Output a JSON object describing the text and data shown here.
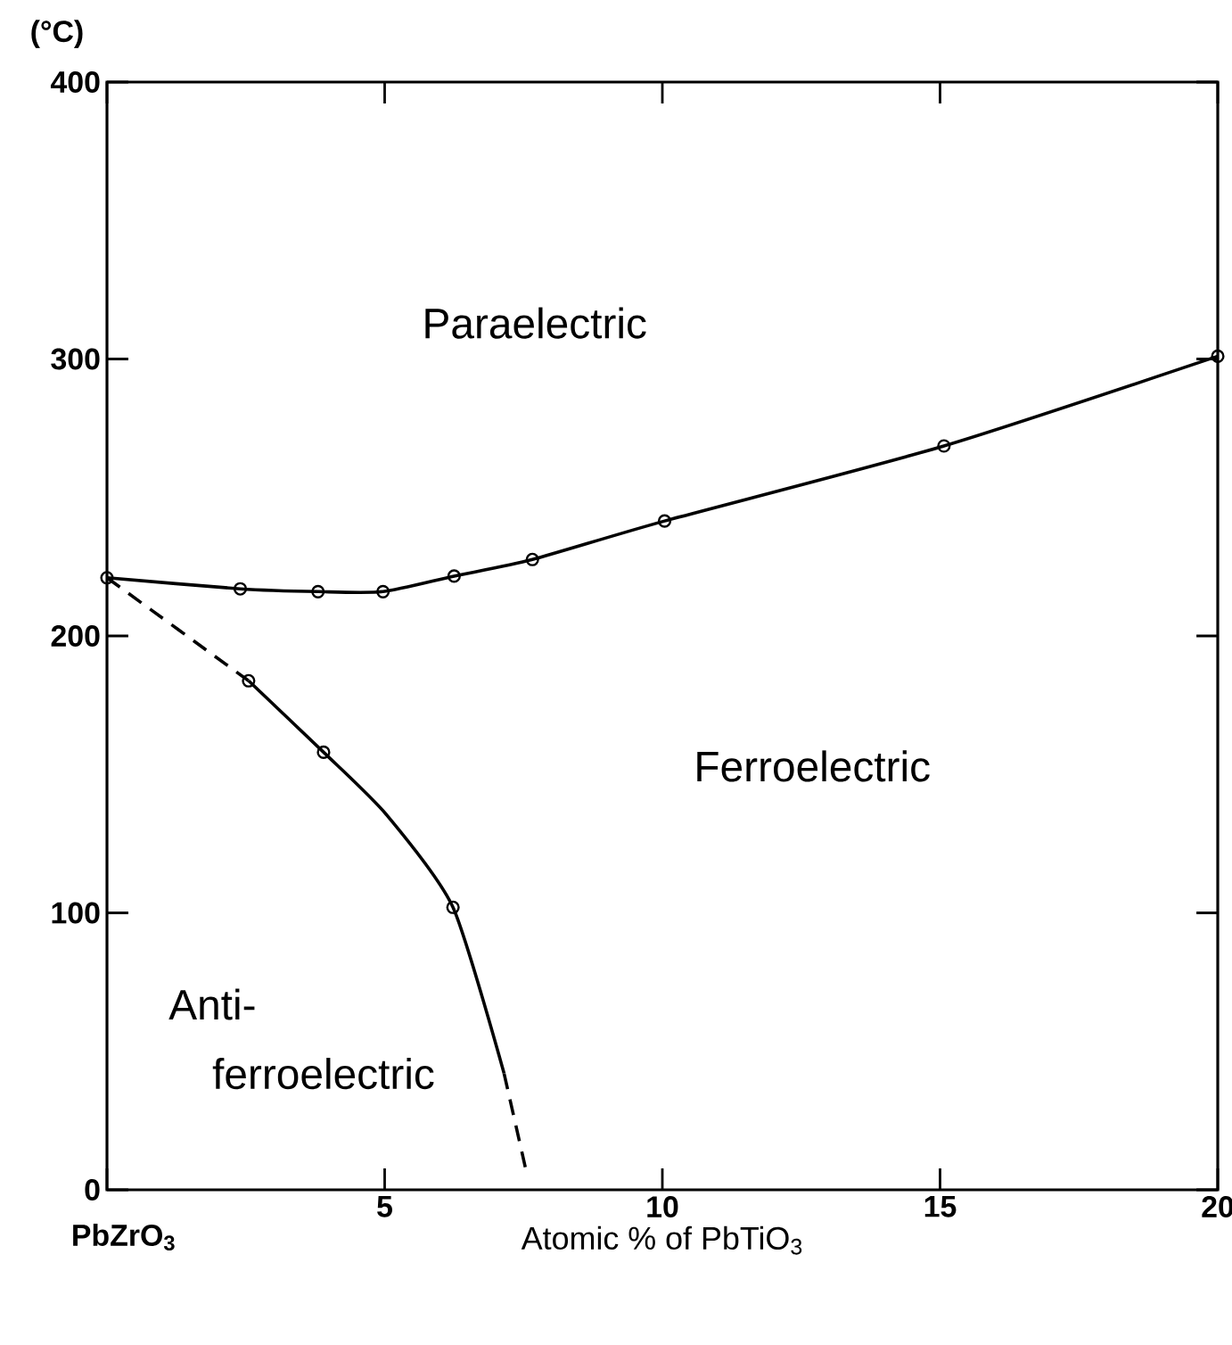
{
  "chart_data": {
    "type": "line",
    "xlabel": "Atomic % of PbTiO$_{3}$",
    "ylabel": "(°C)",
    "xlim": [
      0,
      20
    ],
    "ylim": [
      0,
      400
    ],
    "xticks": [
      {
        "value": 0,
        "label": null
      },
      5,
      10,
      15,
      20
    ],
    "yticks": [
      0,
      100,
      200,
      300,
      400
    ],
    "series": [
      {
        "color": "#000000",
        "marker": "circle",
        "line_style": "solid",
        "x": [
          0,
          2.4,
          3.8,
          4.97,
          6.25,
          7.66,
          10.04,
          15.07,
          20
        ],
        "values": [
          221,
          217,
          216,
          216,
          221.6,
          227.6,
          241.5,
          268.6,
          301
        ]
      },
      {
        "color": "#000000",
        "marker": "none",
        "line_style": "dashed",
        "x": [
          0,
          2.55
        ],
        "values": [
          221,
          183.8
        ]
      },
      {
        "color": "#000000",
        "marker": "none",
        "line_style": "solid",
        "x": [
          2.55,
          3.9,
          5.03,
          6.23,
          7.15
        ],
        "values": [
          183.8,
          158,
          135.5,
          102,
          42
        ]
      },
      {
        "type": "scatter",
        "color": "#000000",
        "marker": "circle",
        "x": [
          2.55,
          3.9,
          6.23
        ],
        "values": [
          183.8,
          158,
          102
        ]
      },
      {
        "color": "#000000",
        "marker": "none",
        "line_style": "dashed",
        "x": [
          7.15,
          7.55
        ],
        "values": [
          42,
          6.6
        ]
      }
    ],
    "annotations": [
      "Paraelectric",
      "Ferroelectric",
      "Anti-",
      "ferroelectric",
      "PbZrO$_{3}$"
    ]
  }
}
